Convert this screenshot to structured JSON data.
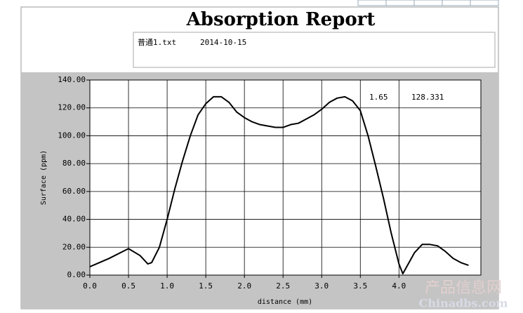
{
  "chart_data": {
    "type": "line",
    "title": "Absorption Report",
    "file_name": "普通1.txt",
    "date": "2014-10-15",
    "xlabel": "distance (mm)",
    "ylabel": "Surface (ppm)",
    "annotation_x": "1.65",
    "annotation_y": "128.331",
    "watermark": "产品信息网",
    "watermark_url": "Chinadbs.com",
    "x": [
      0,
      0.25,
      0.5,
      0.65,
      0.75,
      0.8,
      0.9,
      1.0,
      1.1,
      1.2,
      1.3,
      1.4,
      1.5,
      1.6,
      1.7,
      1.8,
      1.9,
      2.0,
      2.1,
      2.2,
      2.3,
      2.4,
      2.5,
      2.6,
      2.7,
      2.8,
      2.9,
      3.0,
      3.1,
      3.2,
      3.3,
      3.4,
      3.5,
      3.6,
      3.7,
      3.8,
      3.9,
      4.0,
      4.05,
      4.1,
      4.2,
      4.3,
      4.4,
      4.5,
      4.6,
      4.7,
      4.8,
      4.9
    ],
    "values": [
      6,
      12,
      19,
      14,
      8,
      9,
      20,
      40,
      62,
      82,
      100,
      115,
      123,
      128,
      128,
      124,
      117,
      113,
      110,
      108,
      107,
      106,
      106,
      108,
      109,
      112,
      115,
      119,
      124,
      127,
      128,
      125,
      118,
      100,
      78,
      55,
      30,
      8,
      1,
      6,
      16,
      22,
      22,
      21,
      17,
      12,
      9,
      7
    ],
    "color": "#000000",
    "xlim": [
      0,
      5.06
    ],
    "ylim": [
      0,
      140
    ],
    "xticks": [
      {
        "value": 0,
        "label": "0.0"
      },
      {
        "value": 0.5,
        "label": "0.5"
      },
      {
        "value": 1,
        "label": "1.0"
      },
      {
        "value": 1.5,
        "label": "1.5"
      },
      {
        "value": 2,
        "label": "2.0"
      },
      {
        "value": 2.5,
        "label": "2.5"
      },
      {
        "value": 3,
        "label": "3.0"
      },
      {
        "value": 3.5,
        "label": "3.5"
      },
      {
        "value": 4,
        "label": "4.0"
      }
    ],
    "yticks": [
      {
        "value": 0,
        "label": "0.00"
      },
      {
        "value": 20,
        "label": "20.00"
      },
      {
        "value": 40,
        "label": "40.00"
      },
      {
        "value": 60,
        "label": "60.00"
      },
      {
        "value": 80,
        "label": "80.00"
      },
      {
        "value": 100,
        "label": "100.00"
      },
      {
        "value": 120,
        "label": "120.00"
      },
      {
        "value": 140,
        "label": "140.00"
      }
    ],
    "grid": true
  }
}
